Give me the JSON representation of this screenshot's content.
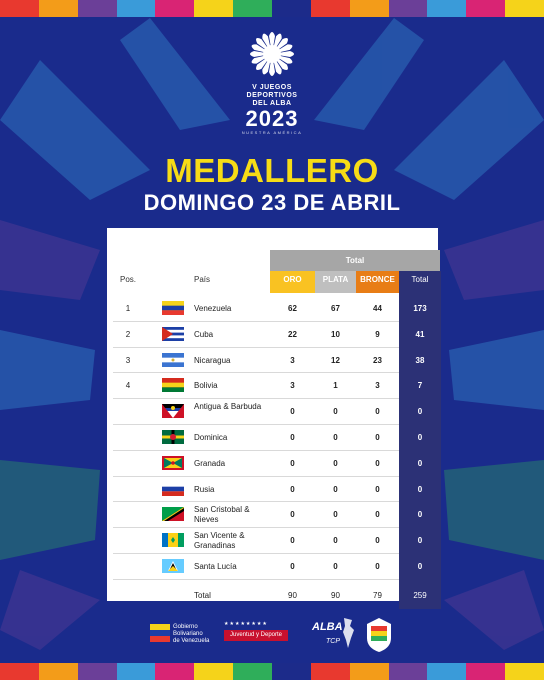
{
  "stripe_colors": [
    "#e8392f",
    "#f39c19",
    "#6b3f98",
    "#3a9bd9",
    "#d92474",
    "#f5d31a",
    "#2fae5a",
    "#1c2b8a",
    "#e8392f",
    "#f39c19",
    "#6b3f98",
    "#3a9bd9",
    "#d92474",
    "#f5d31a"
  ],
  "logo": {
    "line1": "V JUEGOS",
    "line2": "DEPORTIVOS",
    "line3": "DEL ALBA",
    "year": "2023",
    "subtitle": "NUESTRA AMÉRICA"
  },
  "title": "MEDALLERO",
  "subtitle": "DOMINGO 23 DE ABRIL",
  "table": {
    "total_group_label": "Total",
    "headers": {
      "pos": "Pos.",
      "country": "País",
      "gold": "ORO",
      "silver": "PLATA",
      "bronze": "BRONCE",
      "total": "Total"
    },
    "rows": [
      {
        "pos": "1",
        "country": "Venezuela",
        "flag": "venezuela-flag",
        "gold": "62",
        "silver": "67",
        "bronze": "44",
        "total": "173"
      },
      {
        "pos": "2",
        "country": "Cuba",
        "flag": "cuba-flag",
        "gold": "22",
        "silver": "10",
        "bronze": "9",
        "total": "41"
      },
      {
        "pos": "3",
        "country": "Nicaragua",
        "flag": "nicaragua-flag",
        "gold": "3",
        "silver": "12",
        "bronze": "23",
        "total": "38"
      },
      {
        "pos": "4",
        "country": "Bolivia",
        "flag": "bolivia-flag",
        "gold": "3",
        "silver": "1",
        "bronze": "3",
        "total": "7"
      },
      {
        "pos": "",
        "country": "Antigua & Barbuda",
        "flag": "antigua-barbuda-flag",
        "gold": "0",
        "silver": "0",
        "bronze": "0",
        "total": "0"
      },
      {
        "pos": "",
        "country": "Dominica",
        "flag": "dominica-flag",
        "gold": "0",
        "silver": "0",
        "bronze": "0",
        "total": "0"
      },
      {
        "pos": "",
        "country": "Granada",
        "flag": "grenada-flag",
        "gold": "0",
        "silver": "0",
        "bronze": "0",
        "total": "0"
      },
      {
        "pos": "",
        "country": "Rusia",
        "flag": "russia-flag",
        "gold": "0",
        "silver": "0",
        "bronze": "0",
        "total": "0"
      },
      {
        "pos": "",
        "country": "San Cristobal & Nieves",
        "flag": "st-kitts-nevis-flag",
        "gold": "0",
        "silver": "0",
        "bronze": "0",
        "total": "0"
      },
      {
        "pos": "",
        "country": "San Vicente & Granadinas",
        "flag": "st-vincent-grenadines-flag",
        "gold": "0",
        "silver": "0",
        "bronze": "0",
        "total": "0"
      },
      {
        "pos": "",
        "country": "Santa Lucía",
        "flag": "st-lucia-flag",
        "gold": "0",
        "silver": "0",
        "bronze": "0",
        "total": "0"
      }
    ],
    "totals": {
      "label": "Total",
      "gold": "90",
      "silver": "90",
      "bronze": "79",
      "total": "259"
    }
  },
  "footer": {
    "gov_line1": "Gobierno",
    "gov_line2": "Bolivariano",
    "gov_line3": "de Venezuela",
    "youth": "Juventud y Deporte",
    "alba": "ALBA",
    "alba_sub": "TCP"
  }
}
